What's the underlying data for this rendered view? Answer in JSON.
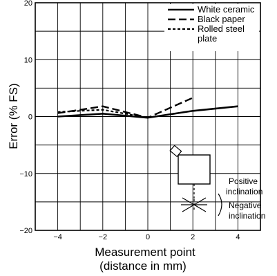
{
  "chart_data": {
    "type": "line",
    "title": "",
    "xlabel_line1": "Measurement point",
    "xlabel_line2": "(distance in mm)",
    "ylabel": "Error (% FS)",
    "xlim": [
      -5,
      5
    ],
    "ylim": [
      -20,
      20
    ],
    "xticks": [
      -4,
      -2,
      0,
      2,
      4
    ],
    "xtick_labels": [
      "−4",
      "−2",
      "0",
      "2",
      "4"
    ],
    "yticks": [
      -20,
      -10,
      0,
      10,
      20
    ],
    "ytick_labels": [
      "−20",
      "−10",
      "0",
      "10",
      "20"
    ],
    "grid": true,
    "legend_position": "top-right",
    "series": [
      {
        "name": "White ceramic",
        "style": "solid",
        "x": [
          -4,
          -2,
          0,
          2,
          4
        ],
        "y": [
          0,
          0.5,
          -0.2,
          1,
          1.8
        ]
      },
      {
        "name": "Black paper",
        "style": "long-dash",
        "x": [
          -4,
          -2,
          0,
          2
        ],
        "y": [
          0.6,
          1.8,
          -0.2,
          3.3
        ]
      },
      {
        "name": "Rolled steel plate",
        "legend_lines": [
          "Rolled steel",
          "plate"
        ],
        "style": "short-dash",
        "x": [
          -4,
          -2,
          0
        ],
        "y": [
          0.8,
          1.2,
          -0.2
        ]
      }
    ],
    "inset_labels": {
      "positive": [
        "Positive",
        "inclination"
      ],
      "negative": [
        "Negative",
        "inclination"
      ]
    }
  }
}
